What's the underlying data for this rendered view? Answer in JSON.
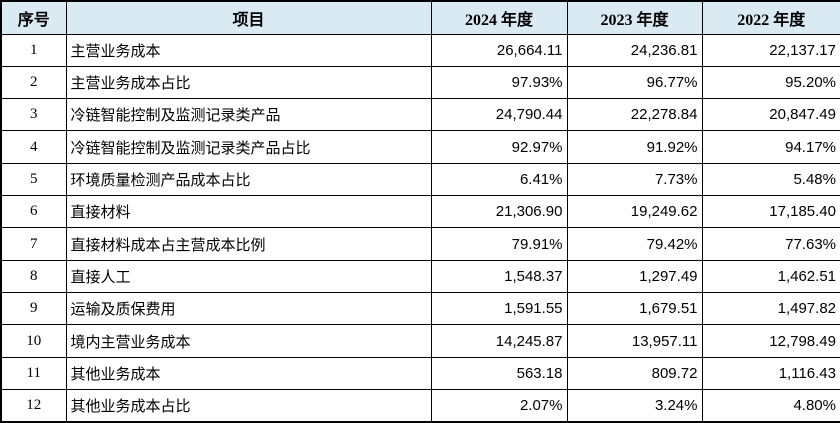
{
  "table": {
    "name": "operating-cost-breakdown-table",
    "columns": [
      "序号",
      "项目",
      "2024 年度",
      "2023 年度",
      "2022 年度"
    ],
    "rows": [
      {
        "seq": "1",
        "item": "主营业务成本",
        "values": [
          "26,664.11",
          "24,236.81",
          "22,137.17"
        ]
      },
      {
        "seq": "2",
        "item": "主营业务成本占比",
        "values": [
          "97.93%",
          "96.77%",
          "95.20%"
        ]
      },
      {
        "seq": "3",
        "item": "冷链智能控制及监测记录类产品",
        "values": [
          "24,790.44",
          "22,278.84",
          "20,847.49"
        ]
      },
      {
        "seq": "4",
        "item": "冷链智能控制及监测记录类产品占比",
        "values": [
          "92.97%",
          "91.92%",
          "94.17%"
        ]
      },
      {
        "seq": "5",
        "item": "环境质量检测产品成本占比",
        "values": [
          "6.41%",
          "7.73%",
          "5.48%"
        ]
      },
      {
        "seq": "6",
        "item": "直接材料",
        "values": [
          "21,306.90",
          "19,249.62",
          "17,185.40"
        ]
      },
      {
        "seq": "7",
        "item": "直接材料成本占主营成本比例",
        "values": [
          "79.91%",
          "79.42%",
          "77.63%"
        ]
      },
      {
        "seq": "8",
        "item": "直接人工",
        "values": [
          "1,548.37",
          "1,297.49",
          "1,462.51"
        ]
      },
      {
        "seq": "9",
        "item": "运输及质保费用",
        "values": [
          "1,591.55",
          "1,679.51",
          "1,497.82"
        ]
      },
      {
        "seq": "10",
        "item": "境内主营业务成本",
        "values": [
          "14,245.87",
          "13,957.11",
          "12,798.49"
        ]
      },
      {
        "seq": "11",
        "item": "其他业务成本",
        "values": [
          "563.18",
          "809.72",
          "1,116.43"
        ]
      },
      {
        "seq": "12",
        "item": "其他业务成本占比",
        "values": [
          "2.07%",
          "3.24%",
          "4.80%"
        ]
      }
    ],
    "colors": {
      "header_bg": "#daeaf3",
      "border": "#000000",
      "text": "#000000"
    }
  }
}
